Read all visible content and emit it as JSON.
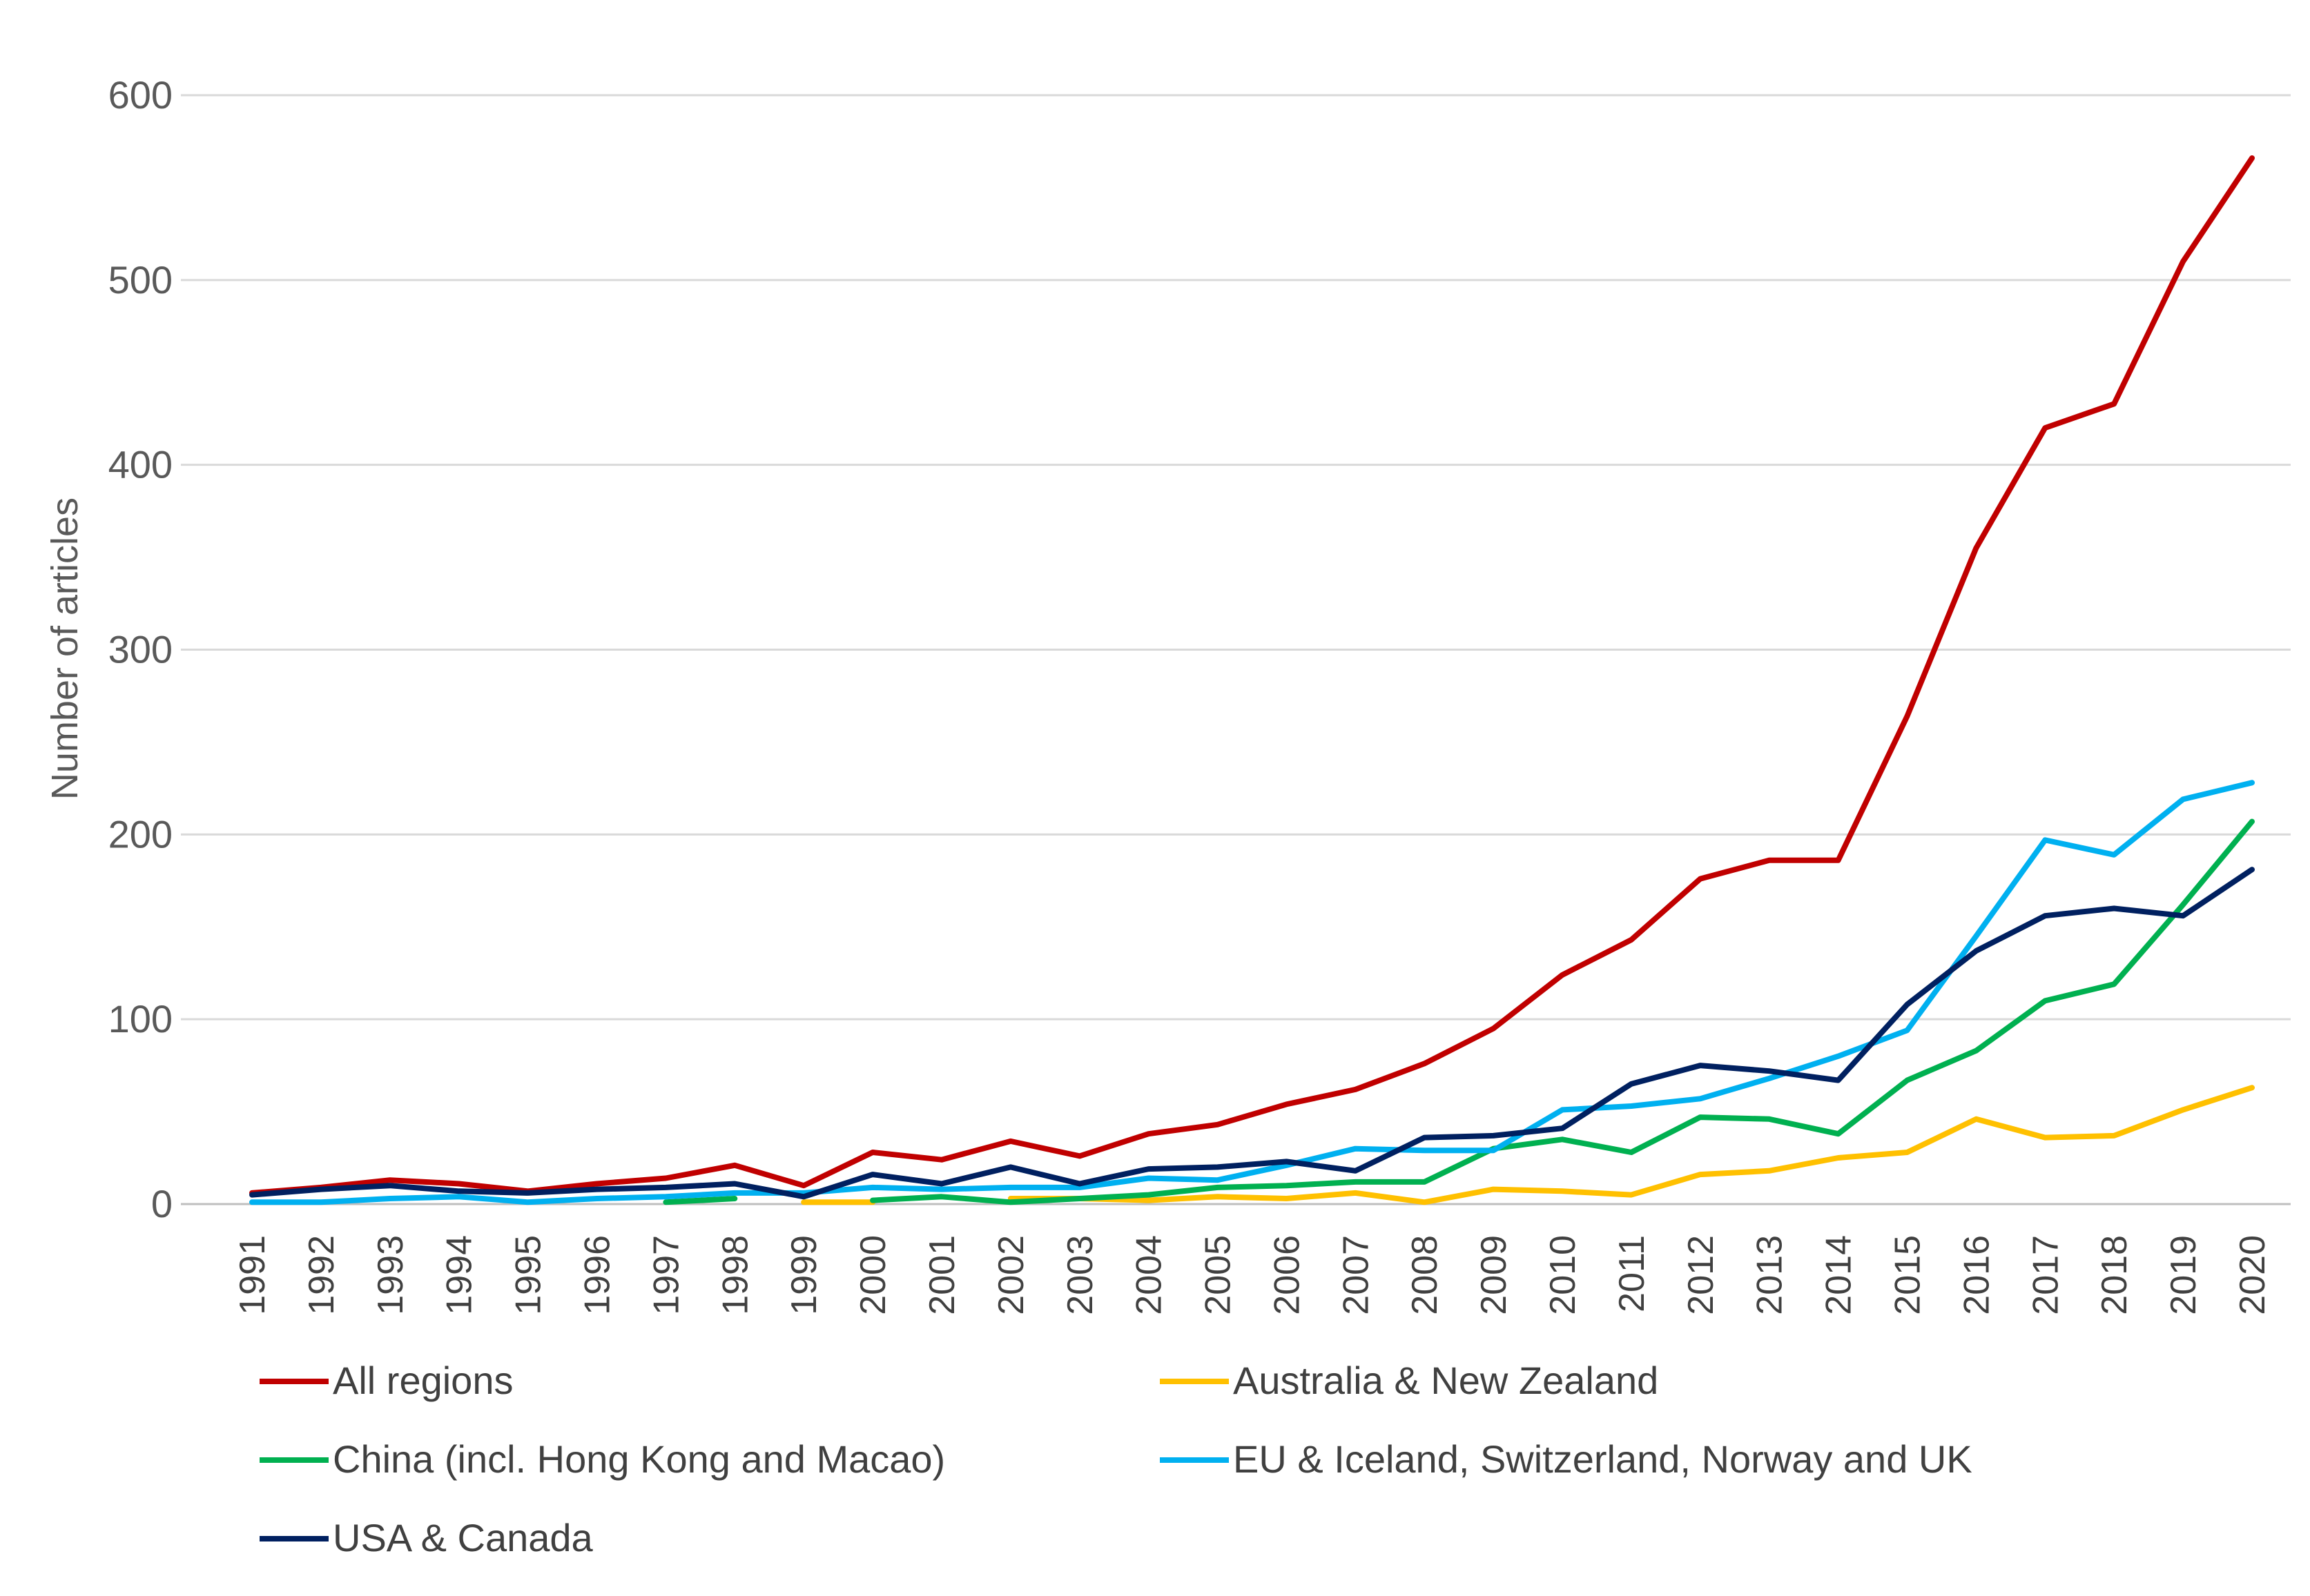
{
  "chart_data": {
    "type": "line",
    "title": "",
    "xlabel": "",
    "ylabel": "Number of articles",
    "ylim": [
      0,
      600
    ],
    "yticks": [
      0,
      100,
      200,
      300,
      400,
      500,
      600
    ],
    "grid": true,
    "legend_position": "bottom",
    "categories": [
      "1991",
      "1992",
      "1993",
      "1994",
      "1995",
      "1996",
      "1997",
      "1998",
      "1999",
      "2000",
      "2001",
      "2002",
      "2003",
      "2004",
      "2005",
      "2006",
      "2007",
      "2008",
      "2009",
      "2010",
      "2011",
      "2012",
      "2013",
      "2014",
      "2015",
      "2016",
      "2017",
      "2018",
      "2019",
      "2020"
    ],
    "series": [
      {
        "name": "All regions",
        "color": "#C00000",
        "values": [
          6,
          9,
          13,
          11,
          7,
          11,
          14,
          21,
          10,
          28,
          24,
          34,
          26,
          38,
          43,
          54,
          62,
          76,
          95,
          124,
          143,
          176,
          186,
          186,
          264,
          355,
          420,
          433,
          510,
          566
        ]
      },
      {
        "name": "Australia & New Zealand",
        "color": "#FFC000",
        "values": [
          null,
          null,
          null,
          null,
          null,
          null,
          null,
          null,
          1,
          1,
          null,
          3,
          3,
          2,
          4,
          3,
          6,
          1,
          8,
          7,
          5,
          16,
          18,
          25,
          28,
          46,
          36,
          37,
          51,
          63
        ]
      },
      {
        "name": "China (incl. Hong Kong and Macao)",
        "color": "#00B050",
        "values": [
          null,
          null,
          null,
          null,
          null,
          null,
          1,
          3,
          null,
          2,
          4,
          1,
          3,
          5,
          9,
          10,
          12,
          12,
          30,
          35,
          28,
          47,
          46,
          38,
          67,
          83,
          110,
          119,
          162,
          207
        ]
      },
      {
        "name": "EU & Iceland, Switzerland, Norway and UK",
        "color": "#00B0F0",
        "values": [
          1,
          1,
          3,
          4,
          1,
          3,
          4,
          6,
          6,
          9,
          8,
          9,
          9,
          14,
          13,
          21,
          30,
          29,
          29,
          51,
          53,
          57,
          68,
          80,
          94,
          145,
          197,
          189,
          219,
          228
        ]
      },
      {
        "name": "USA & Canada",
        "color": "#002060",
        "values": [
          5,
          8,
          10,
          7,
          6,
          8,
          9,
          11,
          4,
          16,
          11,
          20,
          11,
          19,
          20,
          23,
          18,
          36,
          37,
          41,
          65,
          75,
          72,
          67,
          108,
          137,
          156,
          160,
          156,
          181
        ]
      }
    ]
  }
}
